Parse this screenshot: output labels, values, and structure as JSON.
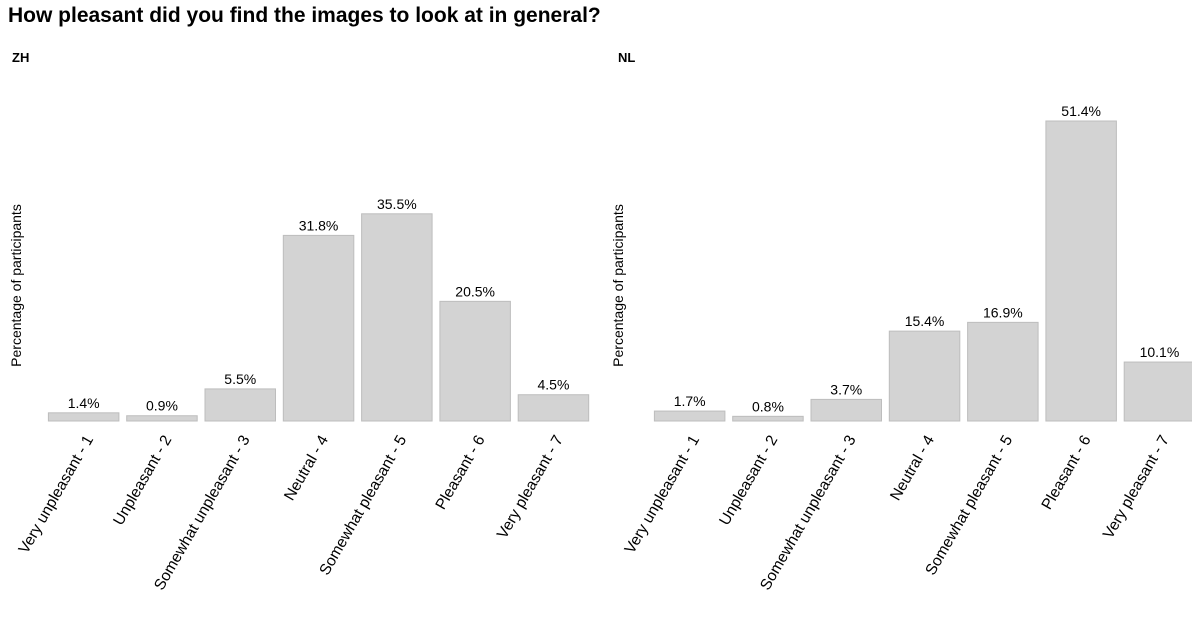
{
  "title": "How pleasant did you find the images to look at in general?",
  "chart_data": [
    {
      "type": "bar",
      "panel": "ZH",
      "ylabel": "Percentage of participants",
      "categories": [
        "Very unpleasant - 1",
        "Unpleasant - 2",
        "Somewhat unpleasant - 3",
        "Neutral - 4",
        "Somewhat pleasant - 5",
        "Pleasant - 6",
        "Very pleasant - 7"
      ],
      "values": [
        1.4,
        0.9,
        5.5,
        31.8,
        35.5,
        20.5,
        4.5
      ],
      "value_labels": [
        "1.4%",
        "0.9%",
        "5.5%",
        "31.8%",
        "35.5%",
        "20.5%",
        "4.5%"
      ],
      "ylim": [
        0,
        51.4
      ],
      "grid": false,
      "bar_color": "#d3d3d3"
    },
    {
      "type": "bar",
      "panel": "NL",
      "ylabel": "Percentage of participants",
      "categories": [
        "Very unpleasant - 1",
        "Unpleasant - 2",
        "Somewhat unpleasant - 3",
        "Neutral - 4",
        "Somewhat pleasant - 5",
        "Pleasant - 6",
        "Very pleasant - 7"
      ],
      "values": [
        1.7,
        0.8,
        3.7,
        15.4,
        16.9,
        51.4,
        10.1
      ],
      "value_labels": [
        "1.7%",
        "0.8%",
        "3.7%",
        "15.4%",
        "16.9%",
        "51.4%",
        "10.1%"
      ],
      "ylim": [
        0,
        51.4
      ],
      "grid": false,
      "bar_color": "#d3d3d3"
    }
  ]
}
